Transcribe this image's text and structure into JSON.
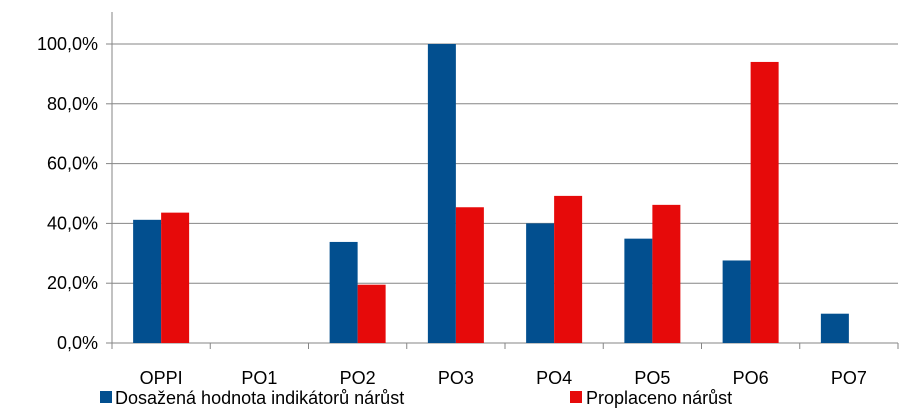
{
  "chart_data": {
    "type": "bar",
    "title": "",
    "xlabel": "",
    "ylabel": "",
    "categories": [
      "OPPI",
      "PO1",
      "PO2",
      "PO3",
      "PO4",
      "PO5",
      "PO6",
      "PO7"
    ],
    "series": [
      {
        "name": "Dosažená hodnota indikátorů nárůst",
        "color": "#024F8F",
        "values": [
          41.2,
          0,
          33.8,
          100.0,
          40.0,
          34.9,
          27.6,
          9.8
        ]
      },
      {
        "name": "Proplaceno nárůst",
        "color": "#E60A0A",
        "values": [
          43.6,
          0,
          19.5,
          45.4,
          49.2,
          46.2,
          94.0,
          0
        ]
      }
    ],
    "ylim": [
      0,
      100
    ],
    "yticks": [
      0,
      20,
      40,
      60,
      80,
      100
    ],
    "ytick_labels": [
      "0,0%",
      "20,0%",
      "40,0%",
      "60,0%",
      "80,0%",
      "100,0%"
    ],
    "grid": true,
    "legend_position": "bottom"
  }
}
